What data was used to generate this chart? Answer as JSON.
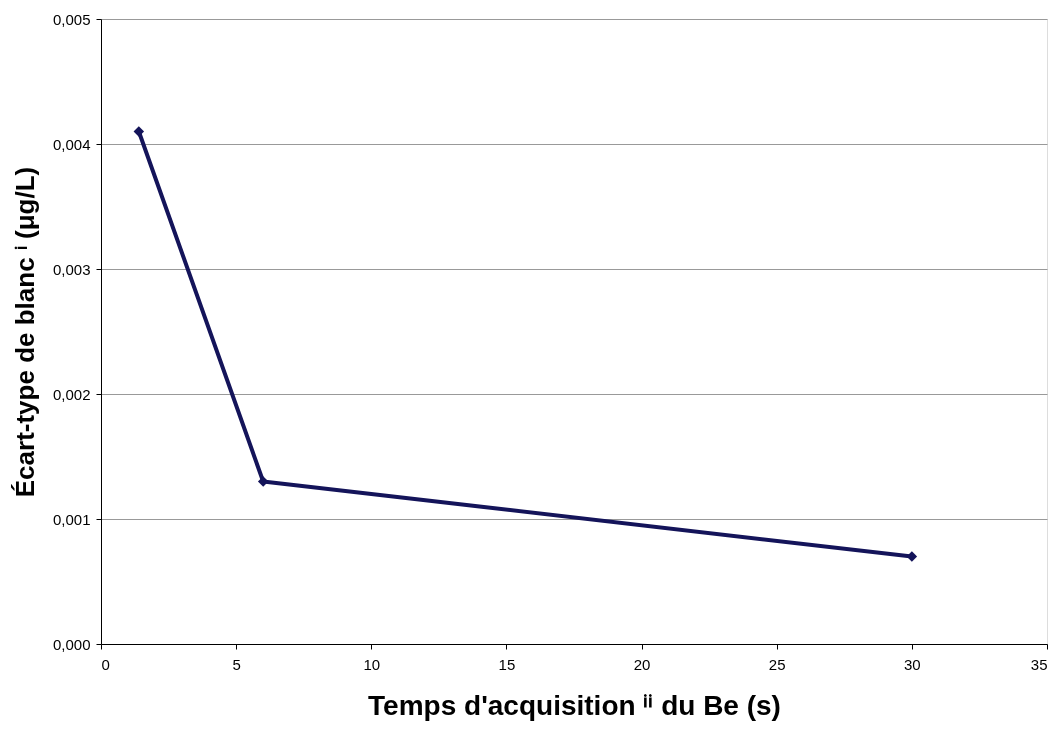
{
  "chart_data": {
    "type": "line",
    "xlabel": "Temps d'acquisition ⁱⁱ du Be (s)",
    "ylabel": "Écart-type de blanc ⁱ (μg/L)",
    "series": [
      {
        "color": "#14145a",
        "x": [
          1.4,
          6,
          30
        ],
        "values": [
          0.0041,
          0.0013,
          0.0007
        ]
      }
    ],
    "xlim": [
      0,
      35
    ],
    "xticks": [
      0,
      5,
      10,
      15,
      20,
      25,
      30,
      35
    ],
    "ylim": [
      0,
      0.005
    ],
    "yticks": [
      {
        "value": 0,
        "label": "0,000"
      },
      {
        "value": 0.001,
        "label": "0,001"
      },
      {
        "value": 0.002,
        "label": "0,002"
      },
      {
        "value": 0.003,
        "label": "0,003"
      },
      {
        "value": 0.004,
        "label": "0,004"
      },
      {
        "value": 0.005,
        "label": "0,005"
      }
    ],
    "grid": "y",
    "marker": "diamond",
    "line_style": "solid"
  }
}
